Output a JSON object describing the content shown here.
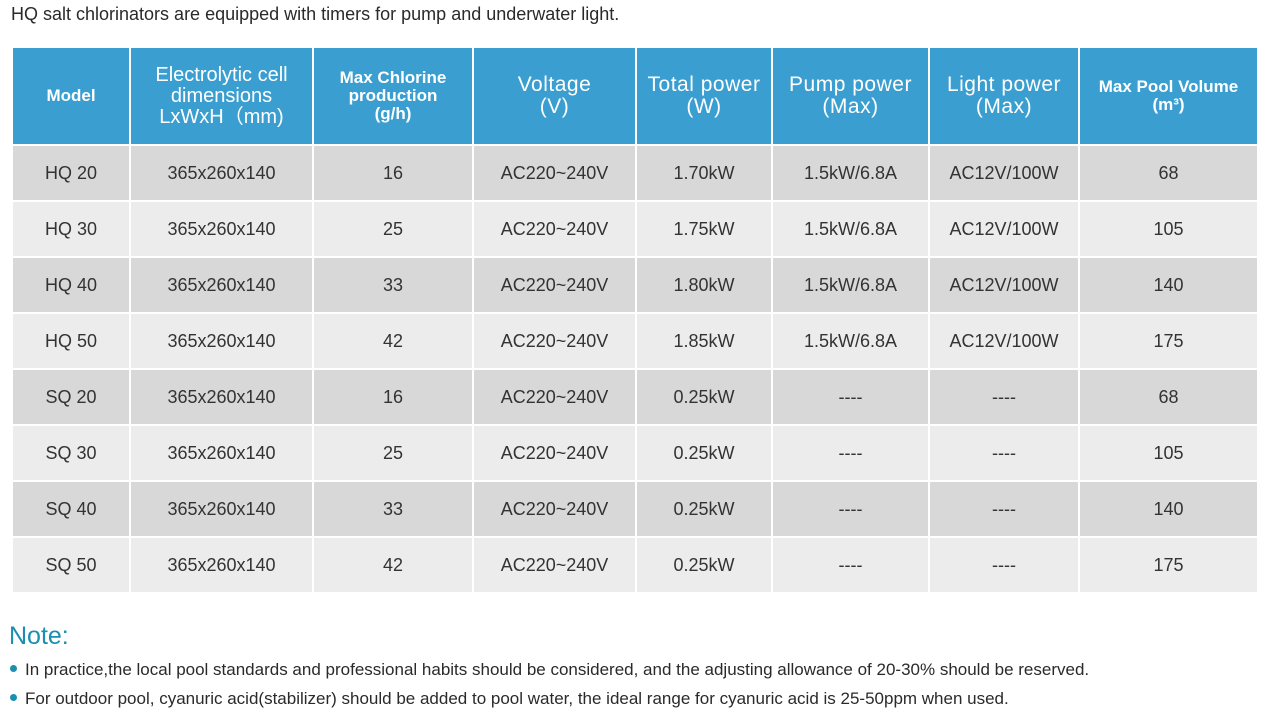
{
  "intro": "HQ salt chlorinators are equipped with timers for pump and underwater light.",
  "colors": {
    "header_bg": "#3a9fd0",
    "row_dark": "#d8d8d8",
    "row_light": "#ececec",
    "note_accent": "#1a8fb0"
  },
  "table": {
    "headers": [
      {
        "lines": [
          "Model"
        ]
      },
      {
        "lines": [
          "Electrolytic cell",
          "dimensions",
          "LxWxH（mm)"
        ]
      },
      {
        "lines": [
          "Max Chlorine",
          "production",
          "(g/h)"
        ]
      },
      {
        "lines": [
          "Voltage",
          "(V)"
        ]
      },
      {
        "lines": [
          "Total power",
          "(W)"
        ]
      },
      {
        "lines": [
          "Pump power",
          "(Max)"
        ]
      },
      {
        "lines": [
          "Light power",
          "(Max)"
        ]
      },
      {
        "lines": [
          "Max Pool Volume",
          "(m³)"
        ]
      }
    ],
    "rows": [
      [
        "HQ 20",
        "365x260x140",
        "16",
        "AC220~240V",
        "1.70kW",
        "1.5kW/6.8A",
        "AC12V/100W",
        "68"
      ],
      [
        "HQ 30",
        "365x260x140",
        "25",
        "AC220~240V",
        "1.75kW",
        "1.5kW/6.8A",
        "AC12V/100W",
        "105"
      ],
      [
        "HQ 40",
        "365x260x140",
        "33",
        "AC220~240V",
        "1.80kW",
        "1.5kW/6.8A",
        "AC12V/100W",
        "140"
      ],
      [
        "HQ 50",
        "365x260x140",
        "42",
        "AC220~240V",
        "1.85kW",
        "1.5kW/6.8A",
        "AC12V/100W",
        "175"
      ],
      [
        "SQ 20",
        "365x260x140",
        "16",
        "AC220~240V",
        "0.25kW",
        "----",
        "----",
        "68"
      ],
      [
        "SQ 30",
        "365x260x140",
        "25",
        "AC220~240V",
        "0.25kW",
        "----",
        "----",
        "105"
      ],
      [
        "SQ 40",
        "365x260x140",
        "33",
        "AC220~240V",
        "0.25kW",
        "----",
        "----",
        "140"
      ],
      [
        "SQ 50",
        "365x260x140",
        "42",
        "AC220~240V",
        "0.25kW",
        "----",
        "----",
        "175"
      ]
    ]
  },
  "note": {
    "title": "Note:",
    "items": [
      "In practice,the local pool standards and professional habits should be considered, and the adjusting allowance of 20-30% should be reserved.",
      "For outdoor pool, cyanuric acid(stabilizer) should be added to pool water, the ideal range for cyanuric acid is 25-50ppm when used."
    ]
  }
}
